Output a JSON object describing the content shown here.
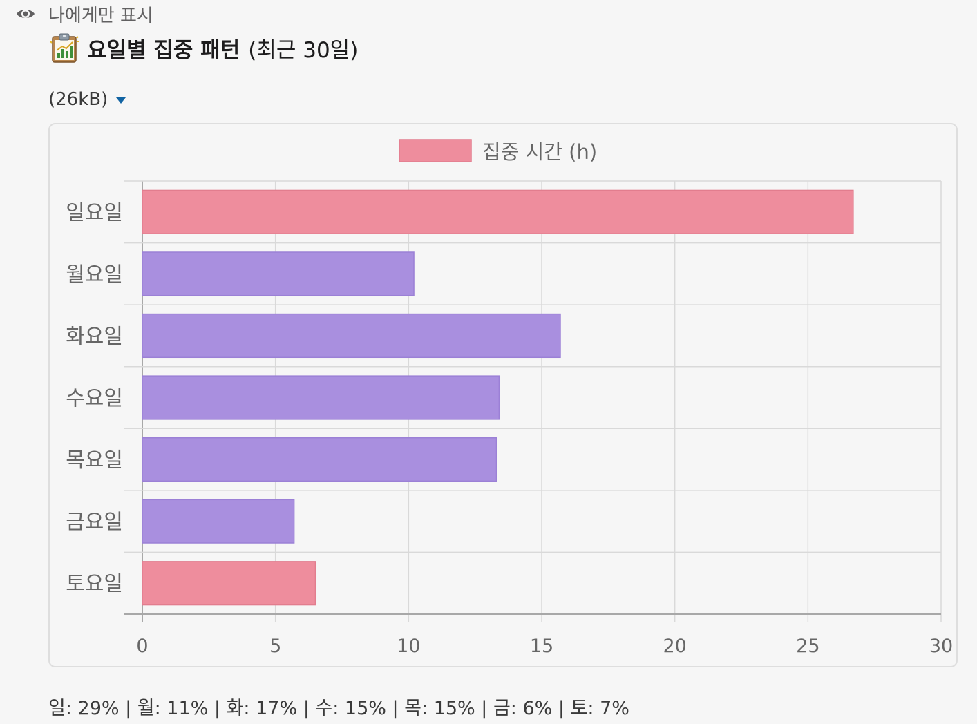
{
  "visibility": {
    "label": "나에게만 표시",
    "icon": "eye-icon"
  },
  "header": {
    "emoji": "chart-clipboard-icon",
    "title_bold": "요일별 집중 패턴",
    "title_suffix": "(최근 30일)"
  },
  "file": {
    "size_label": "(26kB)",
    "toggle_icon": "caret-down-icon"
  },
  "colors": {
    "weekend": "#ee8d9d",
    "weekday": "#a98fdf",
    "weekend_border": "#e27d8e",
    "weekday_border": "#9b80d6",
    "grid": "#d9d9d9"
  },
  "chart_data": {
    "type": "bar",
    "orientation": "horizontal",
    "categories": [
      "일요일",
      "월요일",
      "화요일",
      "수요일",
      "목요일",
      "금요일",
      "토요일"
    ],
    "series": [
      {
        "name": "집중 시간 (h)",
        "values": [
          26.7,
          10.2,
          15.7,
          13.4,
          13.3,
          5.7,
          6.5
        ]
      }
    ],
    "bar_colors": [
      "weekend",
      "weekday",
      "weekday",
      "weekday",
      "weekday",
      "weekday",
      "weekend"
    ],
    "xlim": [
      0,
      30
    ],
    "xticks": [
      0,
      5,
      10,
      15,
      20,
      25,
      30
    ],
    "grid": true,
    "legend": "top-center"
  },
  "summary": "일: 29% | 월: 11% | 화: 17% | 수: 15% | 목: 15% | 금: 6% | 토: 7%"
}
